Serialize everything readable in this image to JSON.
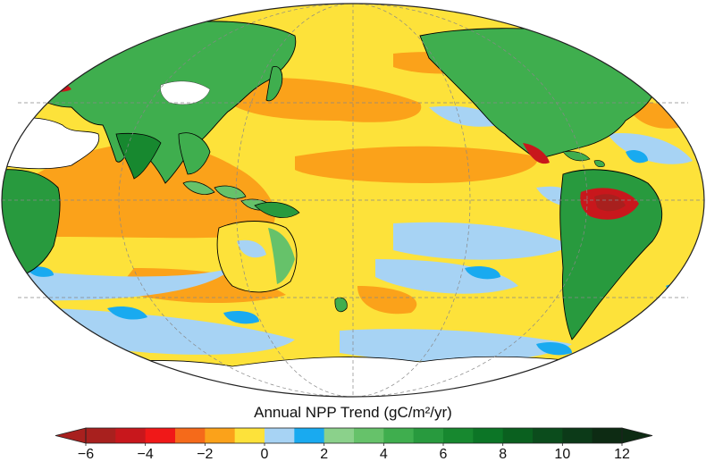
{
  "legend": {
    "title": "Annual NPP Trend (gC/m²/yr)",
    "ticks": [
      "−6",
      "−4",
      "−2",
      "0",
      "2",
      "4",
      "6",
      "8",
      "10",
      "12"
    ],
    "tick_values": [
      -6,
      -4,
      -2,
      0,
      2,
      4,
      6,
      8,
      10,
      12
    ],
    "bins": [
      {
        "from": -6,
        "to": -5,
        "color": "#a8201e"
      },
      {
        "from": -5,
        "to": -4,
        "color": "#c8171c"
      },
      {
        "from": -4,
        "to": -3,
        "color": "#f01818"
      },
      {
        "from": -3,
        "to": -2,
        "color": "#f56a1a"
      },
      {
        "from": -2,
        "to": -1,
        "color": "#fba21a"
      },
      {
        "from": -1,
        "to": 0,
        "color": "#fde23a"
      },
      {
        "from": 0,
        "to": 1,
        "color": "#a7d3f4"
      },
      {
        "from": 1,
        "to": 2,
        "color": "#19aaf0"
      },
      {
        "from": 2,
        "to": 3,
        "color": "#8bd18b"
      },
      {
        "from": 3,
        "to": 4,
        "color": "#66c26a"
      },
      {
        "from": 4,
        "to": 5,
        "color": "#3fae4e"
      },
      {
        "from": 5,
        "to": 6,
        "color": "#289a3e"
      },
      {
        "from": 6,
        "to": 7,
        "color": "#17882f"
      },
      {
        "from": 7,
        "to": 8,
        "color": "#0c7526"
      },
      {
        "from": 8,
        "to": 9,
        "color": "#0a601f"
      },
      {
        "from": 9,
        "to": 10,
        "color": "#0b4c1c"
      },
      {
        "from": 10,
        "to": 11,
        "color": "#0c3a18"
      },
      {
        "from": 11,
        "to": 12,
        "color": "#0d2b13"
      }
    ]
  },
  "map": {
    "projection": "Mollweide",
    "central_meridian": "Pacific-centered",
    "colors": {
      "ocean_base": "#fde23a",
      "ocean_decline": "#fba21a",
      "ocean_increase": "#a7d3f4",
      "ocean_strong_increase": "#19aaf0",
      "land_green": "#3fae4e",
      "land_dark_green": "#17882f",
      "land_light_green": "#8bd18b",
      "land_decline": "#c8171c",
      "no_data": "#ffffff",
      "graticule": "#888888",
      "coastline": "#000000"
    }
  }
}
